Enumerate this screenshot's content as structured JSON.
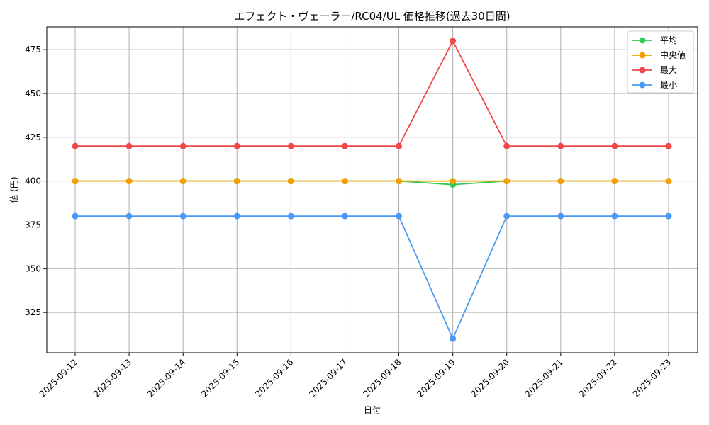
{
  "chart_data": {
    "type": "line",
    "title": "エフェクト・ヴェーラー/RC04/UL 価格推移(過去30日間)",
    "xlabel": "日付",
    "ylabel": "値 (円)",
    "categories": [
      "2025-09-12",
      "2025-09-13",
      "2025-09-14",
      "2025-09-15",
      "2025-09-16",
      "2025-09-17",
      "2025-09-18",
      "2025-09-19",
      "2025-09-20",
      "2025-09-21",
      "2025-09-22",
      "2025-09-23"
    ],
    "ylim": [
      302,
      488
    ],
    "yticks": [
      325,
      350,
      375,
      400,
      425,
      450,
      475
    ],
    "grid": true,
    "legend_position": "top-right",
    "series": [
      {
        "name": "平均",
        "color": "#2ecc55",
        "values": [
          400,
          400,
          400,
          400,
          400,
          400,
          400,
          398,
          400,
          400,
          400,
          400
        ]
      },
      {
        "name": "中央値",
        "color": "#f5a000",
        "values": [
          400,
          400,
          400,
          400,
          400,
          400,
          400,
          400,
          400,
          400,
          400,
          400
        ]
      },
      {
        "name": "最大",
        "color": "#f04848",
        "values": [
          420,
          420,
          420,
          420,
          420,
          420,
          420,
          480,
          420,
          420,
          420,
          420
        ]
      },
      {
        "name": "最小",
        "color": "#4a9af5",
        "values": [
          380,
          380,
          380,
          380,
          380,
          380,
          380,
          310,
          380,
          380,
          380,
          380
        ]
      }
    ]
  }
}
